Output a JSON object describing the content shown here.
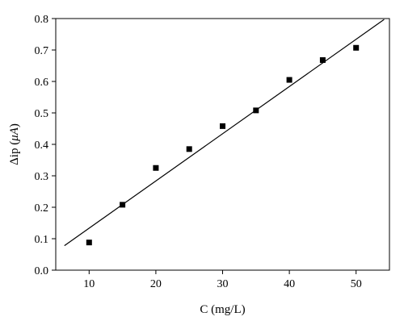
{
  "chart_data": {
    "type": "scatter",
    "title": "",
    "xlabel": "C (mg/L)",
    "ylabel_prefix": "Δip (",
    "ylabel_unit": "μA",
    "ylabel_suffix": ")",
    "xlim": [
      5,
      55
    ],
    "ylim": [
      0,
      0.8
    ],
    "xticks": [
      10,
      20,
      30,
      40,
      50
    ],
    "yticks": [
      0.0,
      0.1,
      0.2,
      0.3,
      0.4,
      0.5,
      0.6,
      0.7,
      0.8
    ],
    "xtick_labels": [
      "10",
      "20",
      "30",
      "40",
      "50"
    ],
    "ytick_labels": [
      "0.0",
      "0.1",
      "0.2",
      "0.3",
      "0.4",
      "0.5",
      "0.6",
      "0.7",
      "0.8"
    ],
    "series": [
      {
        "marker": "square",
        "color": "#000000",
        "x": [
          10,
          15,
          20,
          25,
          30,
          35,
          40,
          45,
          50
        ],
        "y": [
          0.088,
          0.208,
          0.325,
          0.385,
          0.458,
          0.508,
          0.605,
          0.668,
          0.707
        ]
      }
    ],
    "fit_line": {
      "x": [
        6.3,
        54.2
      ],
      "y": [
        0.078,
        0.797
      ],
      "color": "#000000"
    },
    "grid": false,
    "legend": "none"
  }
}
